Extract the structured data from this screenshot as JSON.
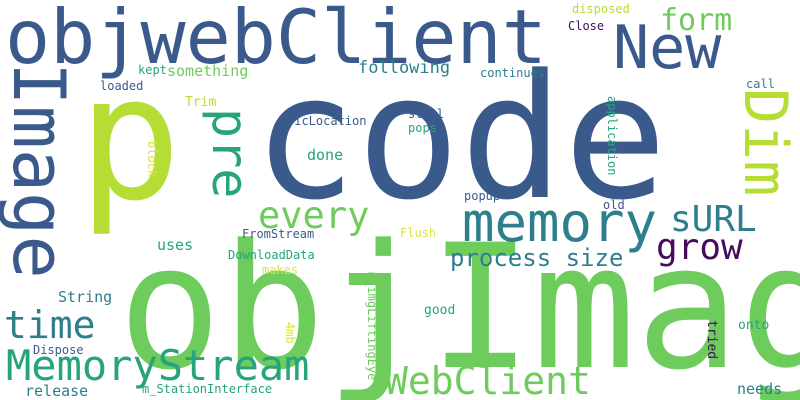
{
  "words": {
    "code": "code",
    "p": "p",
    "objImage": "objImage",
    "objwebClient": "objwebClient",
    "Image": "Image",
    "New": "New",
    "memory": "memory",
    "Dim": "Dim",
    "pre": "pre",
    "MemoryStream": "MemoryStream",
    "WebClient": "WebClient",
    "every": "every",
    "sURL": "sURL",
    "grow": "grow",
    "time": "time",
    "form": "form",
    "process_size": "process size",
    "something": "something",
    "following": "following",
    "continues": "continues",
    "disposed": "disposed",
    "Close": "Close",
    "call": "call",
    "kept": "kept",
    "loaded": "loaded",
    "Trim": "Trim",
    "PicLocation": "PicLocation",
    "still": "still",
    "pops": "pops",
    "application": "application",
    "done": "done",
    "block": "block",
    "popup": "popup",
    "FromStream": "FromStream",
    "old": "old",
    "Flush": "Flush",
    "uses": "uses",
    "DownloadData": "DownloadData",
    "makes": "makes",
    "String": "String",
    "m_imgLiftingEye": "m_imgLiftingEye",
    "fourmb": "4mb",
    "good": "good",
    "tried": "tried",
    "onto": "onto",
    "Dispose": "Dispose",
    "release": "release",
    "m_StationInterface": "m_StationInterface",
    "needs": "needs"
  },
  "colors": {
    "navy": "#3b5a8c",
    "lime": "#b5dd34",
    "green": "#6dcc5c",
    "teal": "#2d7f8c",
    "sea": "#27a37e",
    "purple": "#450c5e",
    "yellow": "#d9e24a"
  }
}
